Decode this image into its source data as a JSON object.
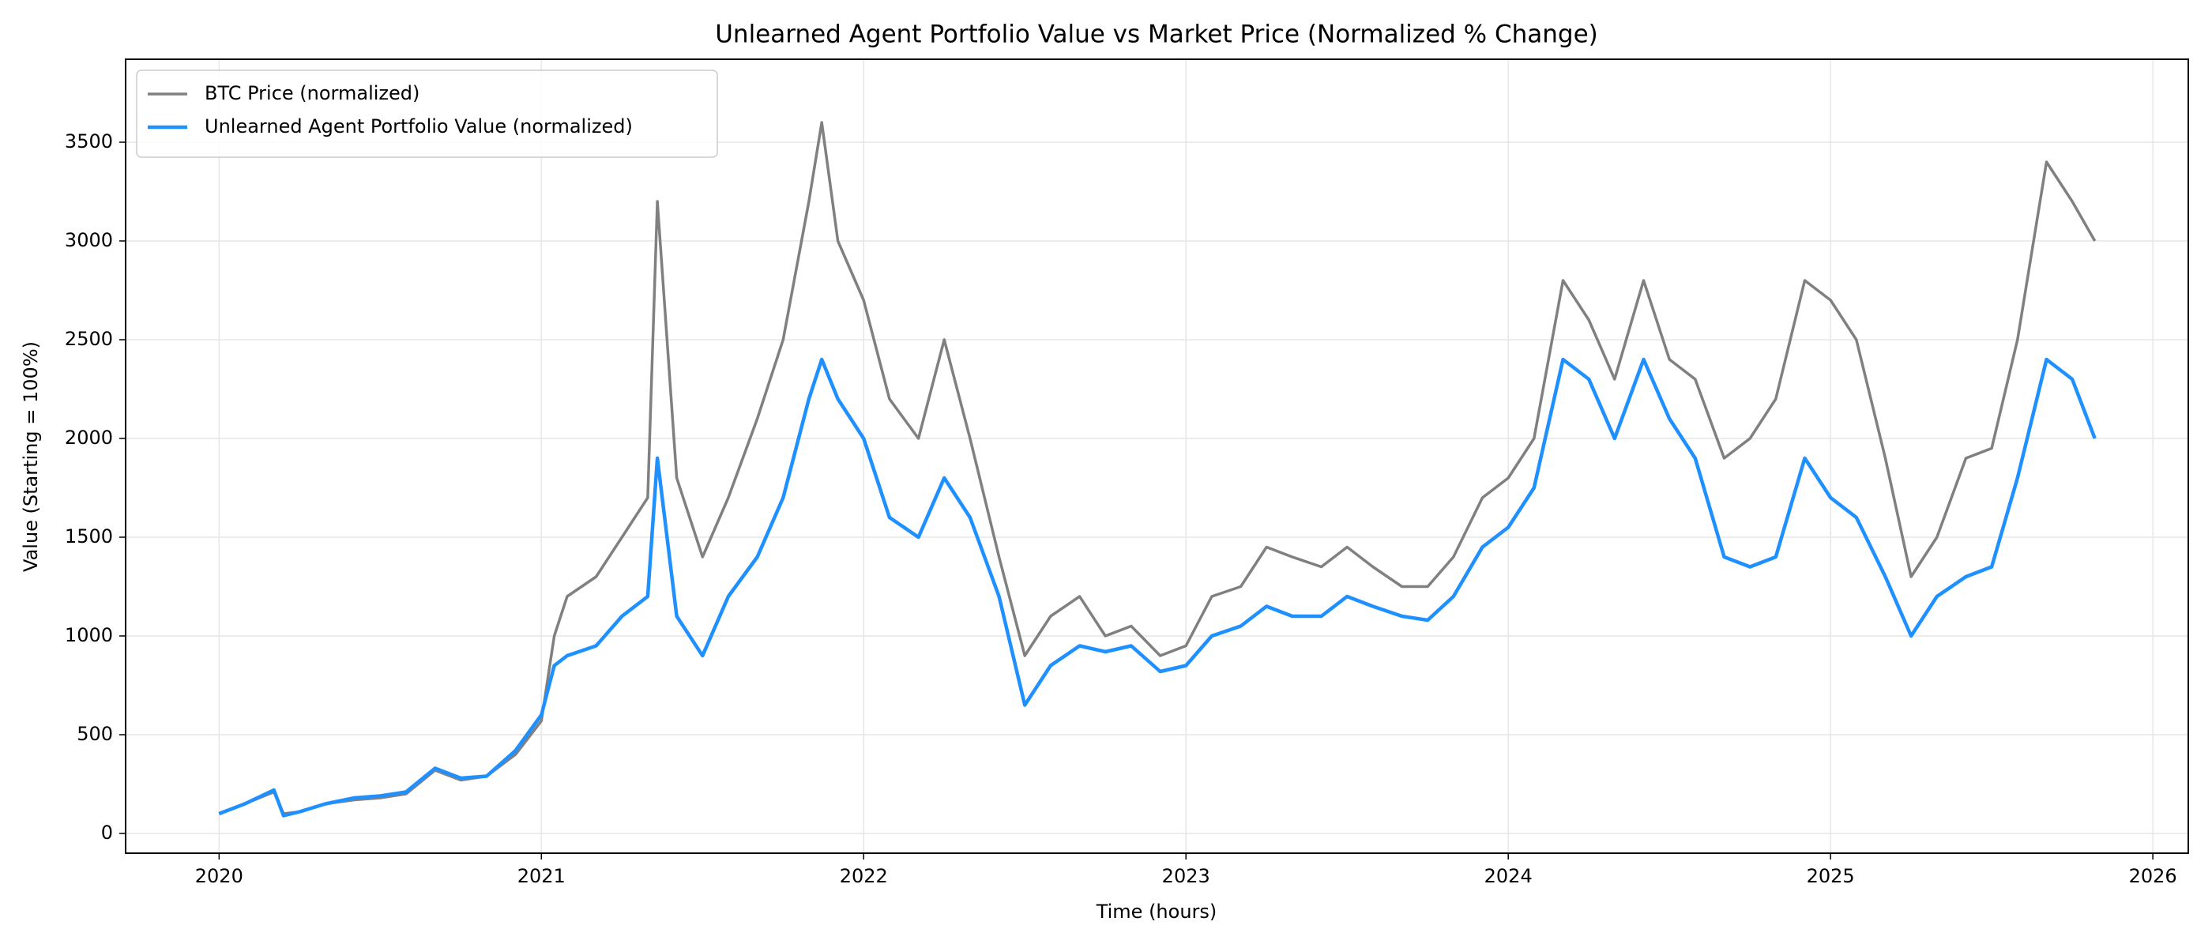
{
  "chart_data": {
    "type": "line",
    "title": "Unlearned Agent Portfolio Value vs Market Price (Normalized % Change)",
    "x_label": "Time (hours)",
    "y_label": "Value (Starting = 100%)",
    "x": [
      2020.0,
      2020.08,
      2020.17,
      2020.2,
      2020.25,
      2020.33,
      2020.42,
      2020.5,
      2020.58,
      2020.67,
      2020.75,
      2020.83,
      2020.92,
      2021.0,
      2021.04,
      2021.08,
      2021.17,
      2021.25,
      2021.33,
      2021.36,
      2021.42,
      2021.5,
      2021.58,
      2021.67,
      2021.75,
      2021.83,
      2021.87,
      2021.92,
      2022.0,
      2022.08,
      2022.17,
      2022.25,
      2022.33,
      2022.42,
      2022.5,
      2022.58,
      2022.67,
      2022.75,
      2022.83,
      2022.92,
      2023.0,
      2023.08,
      2023.17,
      2023.25,
      2023.33,
      2023.42,
      2023.5,
      2023.58,
      2023.67,
      2023.75,
      2023.83,
      2023.92,
      2024.0,
      2024.08,
      2024.17,
      2024.25,
      2024.33,
      2024.42,
      2024.5,
      2024.58,
      2024.67,
      2024.75,
      2024.83,
      2024.92,
      2025.0,
      2025.08,
      2025.17,
      2025.25,
      2025.33,
      2025.42,
      2025.5,
      2025.58,
      2025.67,
      2025.75,
      2025.82
    ],
    "series": [
      {
        "name": "BTC Price (normalized)",
        "color": "#808080",
        "values": [
          100,
          150,
          210,
          100,
          110,
          150,
          170,
          180,
          200,
          320,
          270,
          290,
          400,
          570,
          1000,
          1200,
          1300,
          1500,
          1700,
          3200,
          1800,
          1400,
          1700,
          2100,
          2500,
          3200,
          3600,
          3000,
          2700,
          2200,
          2000,
          2500,
          2000,
          1400,
          900,
          1100,
          1200,
          1000,
          1050,
          900,
          950,
          1200,
          1250,
          1450,
          1400,
          1350,
          1450,
          1350,
          1250,
          1250,
          1400,
          1700,
          1800,
          2000,
          2800,
          2600,
          2300,
          2800,
          2400,
          2300,
          1900,
          2000,
          2200,
          2800,
          2700,
          2500,
          1900,
          1300,
          1500,
          1900,
          1950,
          2500,
          3400,
          3200,
          3000
        ]
      },
      {
        "name": "Unlearned Agent Portfolio Value (normalized)",
        "color": "#1e90ff",
        "values": [
          100,
          150,
          220,
          90,
          110,
          150,
          180,
          190,
          210,
          330,
          280,
          290,
          420,
          600,
          850,
          900,
          950,
          1100,
          1200,
          1900,
          1100,
          900,
          1200,
          1400,
          1700,
          2200,
          2400,
          2200,
          2000,
          1600,
          1500,
          1800,
          1600,
          1200,
          650,
          850,
          950,
          920,
          950,
          820,
          850,
          1000,
          1050,
          1150,
          1100,
          1100,
          1200,
          1150,
          1100,
          1080,
          1200,
          1450,
          1550,
          1750,
          2400,
          2300,
          2000,
          2400,
          2100,
          1900,
          1400,
          1350,
          1400,
          1900,
          1700,
          1600,
          1300,
          1000,
          1200,
          1300,
          1350,
          1800,
          2400,
          2300,
          2000
        ]
      }
    ],
    "xlim": [
      2019.71,
      2026.11
    ],
    "xticks": [
      2020,
      2021,
      2022,
      2023,
      2024,
      2025,
      2026
    ],
    "ylim": [
      -100,
      3920
    ],
    "yticks": [
      0,
      500,
      1000,
      1500,
      2000,
      2500,
      3000,
      3500
    ],
    "grid": true,
    "legend": "upper left"
  }
}
